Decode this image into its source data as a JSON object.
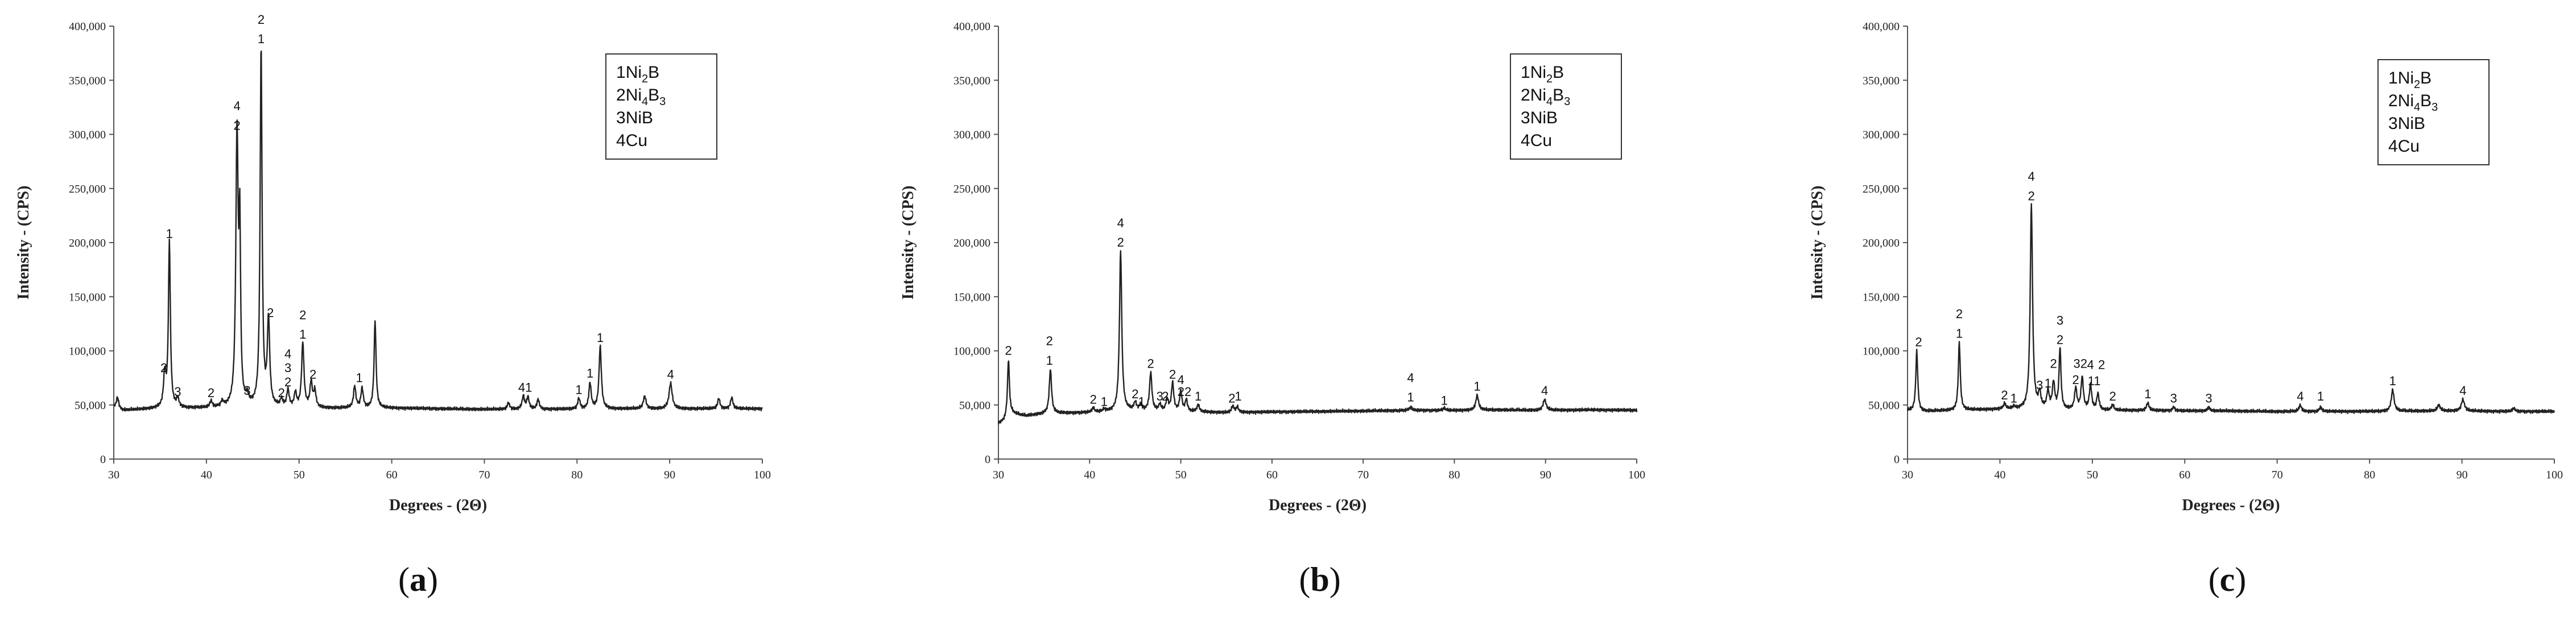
{
  "chart_data": [
    {
      "type": "line",
      "caption_open": "(",
      "caption_letter": "a",
      "caption_close": ")",
      "xlabel": "Degrees - (2Θ)",
      "ylabel": "Intensity - (CPS)",
      "xlim": [
        30,
        100
      ],
      "ylim": [
        0,
        400000
      ],
      "x_ticks": [
        "30",
        "40",
        "50",
        "60",
        "70",
        "80",
        "90",
        "100"
      ],
      "y_ticks": [
        "0",
        "50,000",
        "100,000",
        "150,000",
        "200,000",
        "250,000",
        "300,000",
        "350,000",
        "400,000"
      ],
      "legend": [
        {
          "num": "1",
          "base": "Ni",
          "sub1": "2",
          "mid": "B",
          "sub2": ""
        },
        {
          "num": "2",
          "base": "Ni",
          "sub1": "4",
          "mid": "B",
          "sub2": "3"
        },
        {
          "num": "3",
          "base": "NiB",
          "sub1": "",
          "mid": "",
          "sub2": ""
        },
        {
          "num": "4",
          "base": "Cu",
          "sub1": "",
          "mid": "",
          "sub2": ""
        }
      ],
      "baseline": [
        [
          30,
          48000
        ],
        [
          31,
          45000
        ],
        [
          35,
          47000
        ],
        [
          40,
          47000
        ],
        [
          45,
          48000
        ],
        [
          50,
          47000
        ],
        [
          55,
          47000
        ],
        [
          60,
          47000
        ],
        [
          65,
          46500
        ],
        [
          70,
          46000
        ],
        [
          75,
          46000
        ],
        [
          80,
          46000
        ],
        [
          85,
          46500
        ],
        [
          90,
          46500
        ],
        [
          95,
          46500
        ],
        [
          100,
          46500
        ]
      ],
      "peaks": [
        [
          30.4,
          57000,
          0.3
        ],
        [
          35.5,
          77000,
          0.3
        ],
        [
          36.0,
          200000,
          0.25
        ],
        [
          36.9,
          55000,
          0.3
        ],
        [
          40.5,
          53000,
          0.3
        ],
        [
          41.7,
          52000,
          0.3
        ],
        [
          43.3,
          300000,
          0.3
        ],
        [
          43.6,
          197000,
          0.2
        ],
        [
          44.4,
          55000,
          0.3
        ],
        [
          45.9,
          380000,
          0.25
        ],
        [
          46.7,
          127000,
          0.3
        ],
        [
          48.1,
          54000,
          0.3
        ],
        [
          48.8,
          63000,
          0.3
        ],
        [
          49.6,
          60000,
          0.3
        ],
        [
          50.4,
          107000,
          0.3
        ],
        [
          51.3,
          70000,
          0.3
        ],
        [
          51.7,
          62000,
          0.3
        ],
        [
          56.0,
          67000,
          0.3
        ],
        [
          56.8,
          65000,
          0.3
        ],
        [
          58.2,
          128000,
          0.25
        ],
        [
          72.6,
          52000,
          0.3
        ],
        [
          74.2,
          58000,
          0.3
        ],
        [
          74.7,
          57000,
          0.3
        ],
        [
          75.8,
          55000,
          0.3
        ],
        [
          80.2,
          56000,
          0.3
        ],
        [
          81.4,
          70000,
          0.3
        ],
        [
          82.5,
          104000,
          0.3
        ],
        [
          87.3,
          58000,
          0.35
        ],
        [
          90.1,
          70000,
          0.4
        ],
        [
          95.3,
          56000,
          0.3
        ],
        [
          96.7,
          57000,
          0.3
        ]
      ],
      "peak_labels": [
        {
          "x": 35.4,
          "y": 76000,
          "text": "2"
        },
        {
          "x": 36.0,
          "y": 200000,
          "text": "1"
        },
        {
          "x": 36.9,
          "y": 54000,
          "text": "3"
        },
        {
          "x": 40.5,
          "y": 53000,
          "text": "2"
        },
        {
          "x": 43.3,
          "y": 300000,
          "text": "2"
        },
        {
          "x": 43.3,
          "y": 318000,
          "text": "4"
        },
        {
          "x": 44.4,
          "y": 55000,
          "text": "3"
        },
        {
          "x": 45.9,
          "y": 380000,
          "text": "1"
        },
        {
          "x": 45.9,
          "y": 398000,
          "text": "2"
        },
        {
          "x": 46.9,
          "y": 127000,
          "text": "2"
        },
        {
          "x": 48.1,
          "y": 53000,
          "text": "2"
        },
        {
          "x": 48.8,
          "y": 63000,
          "text": "2"
        },
        {
          "x": 48.8,
          "y": 76000,
          "text": "3"
        },
        {
          "x": 48.8,
          "y": 89000,
          "text": "4"
        },
        {
          "x": 50.4,
          "y": 107000,
          "text": "1"
        },
        {
          "x": 50.4,
          "y": 125000,
          "text": "2"
        },
        {
          "x": 51.5,
          "y": 70000,
          "text": "2"
        },
        {
          "x": 56.5,
          "y": 67000,
          "text": "1"
        },
        {
          "x": 74.4,
          "y": 58000,
          "text": "41"
        },
        {
          "x": 80.2,
          "y": 56000,
          "text": "1"
        },
        {
          "x": 81.4,
          "y": 71000,
          "text": "1"
        },
        {
          "x": 82.5,
          "y": 104000,
          "text": "1"
        },
        {
          "x": 90.1,
          "y": 70000,
          "text": "4"
        }
      ]
    },
    {
      "type": "line",
      "caption_open": "(",
      "caption_letter": "b",
      "caption_close": ")",
      "xlabel": "Degrees - (2Θ)",
      "ylabel": "Intensity - (CPS)",
      "xlim": [
        30,
        100
      ],
      "ylim": [
        0,
        400000
      ],
      "x_ticks": [
        "30",
        "40",
        "50",
        "60",
        "70",
        "80",
        "90",
        "100"
      ],
      "y_ticks": [
        "0",
        "50,000",
        "100,000",
        "150,000",
        "200,000",
        "250,000",
        "300,000",
        "350,000",
        "400,000"
      ],
      "legend": [
        {
          "num": "1",
          "base": "Ni",
          "sub1": "2",
          "mid": "B",
          "sub2": ""
        },
        {
          "num": "2",
          "base": "Ni",
          "sub1": "4",
          "mid": "B",
          "sub2": "3"
        },
        {
          "num": "3",
          "base": "NiB",
          "sub1": "",
          "mid": "",
          "sub2": ""
        },
        {
          "num": "4",
          "base": "Cu",
          "sub1": "",
          "mid": "",
          "sub2": ""
        }
      ],
      "baseline": [
        [
          30,
          33000
        ],
        [
          30.6,
          35000
        ],
        [
          31.5,
          42000
        ],
        [
          33,
          40000
        ],
        [
          35,
          42000
        ],
        [
          40,
          43000
        ],
        [
          45,
          45000
        ],
        [
          50,
          44000
        ],
        [
          55,
          43000
        ],
        [
          60,
          43500
        ],
        [
          65,
          44000
        ],
        [
          70,
          44500
        ],
        [
          75,
          45000
        ],
        [
          80,
          45000
        ],
        [
          85,
          45500
        ],
        [
          90,
          45000
        ],
        [
          95,
          45500
        ],
        [
          100,
          45000
        ]
      ],
      "peaks": [
        [
          31.1,
          92000,
          0.25
        ],
        [
          35.7,
          83000,
          0.3
        ],
        [
          40.4,
          47000,
          0.3
        ],
        [
          41.6,
          46000,
          0.3
        ],
        [
          43.4,
          192000,
          0.3
        ],
        [
          45.0,
          52000,
          0.3
        ],
        [
          45.6,
          50000,
          0.3
        ],
        [
          46.7,
          80000,
          0.3
        ],
        [
          47.7,
          50000,
          0.3
        ],
        [
          48.5,
          55000,
          0.3
        ],
        [
          49.1,
          70000,
          0.3
        ],
        [
          50.0,
          62000,
          0.3
        ],
        [
          50.6,
          54000,
          0.3
        ],
        [
          51.9,
          50000,
          0.3
        ],
        [
          55.7,
          49000,
          0.3
        ],
        [
          56.2,
          48000,
          0.3
        ],
        [
          75.2,
          48000,
          0.3
        ],
        [
          78.9,
          47000,
          0.3
        ],
        [
          82.5,
          59000,
          0.35
        ],
        [
          89.9,
          55000,
          0.4
        ]
      ],
      "peak_labels": [
        {
          "x": 31.1,
          "y": 92000,
          "text": "2"
        },
        {
          "x": 35.6,
          "y": 83000,
          "text": "1"
        },
        {
          "x": 35.6,
          "y": 101000,
          "text": "2"
        },
        {
          "x": 40.4,
          "y": 47000,
          "text": "2"
        },
        {
          "x": 41.6,
          "y": 45000,
          "text": "1"
        },
        {
          "x": 43.4,
          "y": 192000,
          "text": "2"
        },
        {
          "x": 43.4,
          "y": 210000,
          "text": "4"
        },
        {
          "x": 45.0,
          "y": 52000,
          "text": "2"
        },
        {
          "x": 45.7,
          "y": 45000,
          "text": "1"
        },
        {
          "x": 46.7,
          "y": 80000,
          "text": "2"
        },
        {
          "x": 47.7,
          "y": 50000,
          "text": "3"
        },
        {
          "x": 48.3,
          "y": 50000,
          "text": "2"
        },
        {
          "x": 49.1,
          "y": 70000,
          "text": "2"
        },
        {
          "x": 50.0,
          "y": 65000,
          "text": "4"
        },
        {
          "x": 50.4,
          "y": 54000,
          "text": "22"
        },
        {
          "x": 51.9,
          "y": 50000,
          "text": "1"
        },
        {
          "x": 55.6,
          "y": 48000,
          "text": "2"
        },
        {
          "x": 56.3,
          "y": 50000,
          "text": "1"
        },
        {
          "x": 75.2,
          "y": 49000,
          "text": "1"
        },
        {
          "x": 75.2,
          "y": 67000,
          "text": "4"
        },
        {
          "x": 78.9,
          "y": 46000,
          "text": "1"
        },
        {
          "x": 82.5,
          "y": 59000,
          "text": "1"
        },
        {
          "x": 89.9,
          "y": 55000,
          "text": "4"
        }
      ]
    },
    {
      "type": "line",
      "caption_open": "(",
      "caption_letter": "c",
      "caption_close": ")",
      "xlabel": "Degrees - (2Θ)",
      "ylabel": "Intensity - (CPS)",
      "xlim": [
        30,
        100
      ],
      "ylim": [
        0,
        400000
      ],
      "x_ticks": [
        "30",
        "40",
        "50",
        "60",
        "70",
        "80",
        "90",
        "100"
      ],
      "y_ticks": [
        "0",
        "50,000",
        "100,000",
        "150,000",
        "200,000",
        "250,000",
        "300,000",
        "350,000",
        "400,000"
      ],
      "legend": [
        {
          "num": "1",
          "base": "Ni",
          "sub1": "2",
          "mid": "B",
          "sub2": ""
        },
        {
          "num": "2",
          "base": "Ni",
          "sub1": "4",
          "mid": "B",
          "sub2": "3"
        },
        {
          "num": "3",
          "base": "NiB",
          "sub1": "",
          "mid": "",
          "sub2": ""
        },
        {
          "num": "4",
          "base": "Cu",
          "sub1": "",
          "mid": "",
          "sub2": ""
        }
      ],
      "baseline": [
        [
          30,
          45000
        ],
        [
          31.5,
          44000
        ],
        [
          35,
          45000
        ],
        [
          40,
          46000
        ],
        [
          45,
          46000
        ],
        [
          50,
          45000
        ],
        [
          55,
          45000
        ],
        [
          60,
          44500
        ],
        [
          65,
          44500
        ],
        [
          70,
          44000
        ],
        [
          75,
          44000
        ],
        [
          80,
          44000
        ],
        [
          85,
          44500
        ],
        [
          90,
          44500
        ],
        [
          95,
          44000
        ],
        [
          100,
          44000
        ]
      ],
      "peaks": [
        [
          31.0,
          100000,
          0.25
        ],
        [
          35.6,
          108000,
          0.25
        ],
        [
          40.5,
          51000,
          0.3
        ],
        [
          41.5,
          48000,
          0.3
        ],
        [
          43.4,
          235000,
          0.3
        ],
        [
          44.3,
          60000,
          0.3
        ],
        [
          45.2,
          62000,
          0.3
        ],
        [
          45.8,
          70000,
          0.3
        ],
        [
          46.5,
          102000,
          0.25
        ],
        [
          48.2,
          65000,
          0.3
        ],
        [
          48.9,
          75000,
          0.3
        ],
        [
          49.8,
          68000,
          0.3
        ],
        [
          50.6,
          60000,
          0.3
        ],
        [
          52.2,
          50000,
          0.3
        ],
        [
          56.0,
          52000,
          0.3
        ],
        [
          58.8,
          48000,
          0.3
        ],
        [
          62.6,
          48000,
          0.3
        ],
        [
          72.5,
          50000,
          0.3
        ],
        [
          74.7,
          48000,
          0.3
        ],
        [
          82.5,
          64000,
          0.35
        ],
        [
          87.5,
          50000,
          0.35
        ],
        [
          90.1,
          55000,
          0.4
        ],
        [
          95.6,
          47000,
          0.3
        ]
      ],
      "peak_labels": [
        {
          "x": 31.2,
          "y": 100000,
          "text": "2"
        },
        {
          "x": 35.6,
          "y": 108000,
          "text": "1"
        },
        {
          "x": 35.6,
          "y": 126000,
          "text": "2"
        },
        {
          "x": 40.5,
          "y": 51000,
          "text": "2"
        },
        {
          "x": 41.5,
          "y": 48000,
          "text": "1"
        },
        {
          "x": 43.4,
          "y": 235000,
          "text": "2"
        },
        {
          "x": 43.4,
          "y": 253000,
          "text": "4"
        },
        {
          "x": 44.3,
          "y": 60000,
          "text": "3"
        },
        {
          "x": 45.2,
          "y": 62000,
          "text": "1"
        },
        {
          "x": 45.8,
          "y": 80000,
          "text": "2"
        },
        {
          "x": 46.5,
          "y": 102000,
          "text": "2"
        },
        {
          "x": 46.5,
          "y": 120000,
          "text": "3"
        },
        {
          "x": 48.2,
          "y": 65000,
          "text": "2"
        },
        {
          "x": 48.7,
          "y": 80000,
          "text": "32"
        },
        {
          "x": 49.8,
          "y": 79000,
          "text": "4"
        },
        {
          "x": 50.2,
          "y": 64000,
          "text": "11"
        },
        {
          "x": 51.0,
          "y": 79000,
          "text": "2"
        },
        {
          "x": 52.2,
          "y": 50000,
          "text": "2"
        },
        {
          "x": 56.0,
          "y": 52000,
          "text": "1"
        },
        {
          "x": 58.8,
          "y": 48000,
          "text": "3"
        },
        {
          "x": 62.6,
          "y": 48000,
          "text": "3"
        },
        {
          "x": 72.5,
          "y": 50000,
          "text": "4"
        },
        {
          "x": 74.7,
          "y": 50000,
          "text": "1"
        },
        {
          "x": 82.5,
          "y": 64000,
          "text": "1"
        },
        {
          "x": 90.1,
          "y": 55000,
          "text": "4"
        }
      ]
    }
  ]
}
